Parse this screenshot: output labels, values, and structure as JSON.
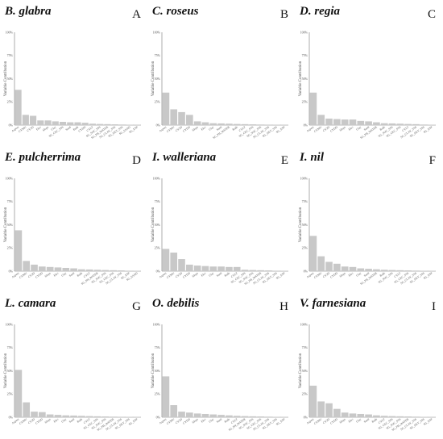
{
  "chart_data": [
    {
      "type": "bar",
      "panel": "A",
      "species": "B. glabra",
      "ylabel": "Variable Contribution",
      "yticks": [
        "100%",
        "75%",
        "50%",
        "25%",
        "0%"
      ],
      "ylim": [
        0,
        100
      ],
      "categories": [
        "Aspect",
        "CYMU",
        "CY2D",
        "Elev",
        "Slope",
        "Clay",
        "SG_CEC_SSS",
        "Sand",
        "Bulk",
        "CYDD",
        "CYLT",
        "SG_SOC_SSS",
        "SG_PH_WATER",
        "SG_CLAY_SSS",
        "SG_SILT_SSS",
        "SG_SAND",
        "SG_ESP"
      ],
      "values": [
        38,
        11,
        10,
        5,
        5,
        4,
        3.5,
        3,
        3,
        2.5,
        1.5,
        1.2,
        1,
        0.8,
        0.6,
        0.4,
        0.3
      ]
    },
    {
      "type": "bar",
      "panel": "B",
      "species": "C. roseus",
      "ylabel": "Variable Contribution",
      "yticks": [
        "100%",
        "75%",
        "50%",
        "25%",
        "0%"
      ],
      "ylim": [
        0,
        100
      ],
      "categories": [
        "Aspect",
        "CYMU",
        "CY2D",
        "CYDD",
        "Slope",
        "Elev",
        "Clay",
        "Sand",
        "SG_PH_WATER",
        "Bulk",
        "CYLT",
        "SG_CEC_SSS",
        "SG_SOC_SSS",
        "SG_CLAY_SSS",
        "SG_SILT_SSS",
        "SG_ESP"
      ],
      "values": [
        35,
        17,
        14,
        11,
        4,
        3,
        2,
        1.8,
        1.5,
        1.2,
        1,
        0.8,
        0.6,
        0.5,
        0.4,
        0.3
      ]
    },
    {
      "type": "bar",
      "panel": "C",
      "species": "D. regia",
      "ylabel": "Variable Contribution",
      "yticks": [
        "100%",
        "75%",
        "50%",
        "25%",
        "0%"
      ],
      "ylim": [
        0,
        100
      ],
      "categories": [
        "Aspect",
        "CYMU",
        "CY2D",
        "CYDD",
        "Slope",
        "Elev",
        "Clay",
        "Sand",
        "SG_PH_WATER",
        "Bulk",
        "SG_SOC_SSS",
        "SG_CEC_SSS",
        "CYLT",
        "SG_CLAY_SSS",
        "SG_SILT_SSS",
        "SG_ESP"
      ],
      "values": [
        35,
        11,
        7,
        6.5,
        6,
        6,
        4.5,
        4,
        3,
        2,
        1.8,
        1.5,
        1.2,
        1,
        0.6,
        0.4
      ]
    },
    {
      "type": "bar",
      "panel": "D",
      "species": "E. pulcherrima",
      "ylabel": "Variable Contribution",
      "yticks": [
        "100%",
        "75%",
        "50%",
        "25%",
        "0%"
      ],
      "ylim": [
        0,
        100
      ],
      "categories": [
        "Aspect",
        "CYMU",
        "CY2D",
        "CYDD",
        "Slope",
        "Elev",
        "Clay",
        "Sand",
        "Bulk",
        "CYLT",
        "SG_PH_WATER",
        "SG_SOC_SSS",
        "SG_CEC_SSS",
        "SG_CLAY_SSS",
        "SG_ESP",
        "SG_SAND"
      ],
      "values": [
        44,
        11,
        7,
        5,
        4.5,
        4,
        3.5,
        3,
        2,
        1.8,
        1.5,
        1.2,
        1,
        0.8,
        0.5,
        0.3
      ]
    },
    {
      "type": "bar",
      "panel": "E",
      "species": "I. walleriana",
      "ylabel": "Variable Contribution",
      "yticks": [
        "100%",
        "75%",
        "50%",
        "25%",
        "0%"
      ],
      "ylim": [
        0,
        100
      ],
      "categories": [
        "Aspect",
        "CYMU",
        "CY2D",
        "CYDD",
        "Slope",
        "Elev",
        "Clay",
        "Sand",
        "Bulk",
        "CYLT",
        "SG_CEC_SSS",
        "SG_SOC_SSS",
        "SG_PH_WATER",
        "SG_CLAY_SSS",
        "SG_SILT_SSS",
        "SG_ESP"
      ],
      "values": [
        24,
        20,
        13,
        7,
        6,
        5.5,
        5,
        5,
        4.5,
        4.5,
        1.5,
        1.2,
        1,
        0.8,
        0.5,
        0.3
      ]
    },
    {
      "type": "bar",
      "panel": "F",
      "species": "I. nil",
      "ylabel": "Variable Contribution",
      "yticks": [
        "100%",
        "75%",
        "50%",
        "25%",
        "0%"
      ],
      "ylim": [
        0,
        100
      ],
      "categories": [
        "Aspect",
        "CYMU",
        "CY2D",
        "CYDD",
        "Slope",
        "Elev",
        "Clay",
        "Sand",
        "SG_PH_WATER",
        "Bulk",
        "SG_SOC_SSS",
        "CYLT",
        "SG_CEC_SSS",
        "SG_CLAY_SSS",
        "SG_SILT_SSS",
        "SG_ESP"
      ],
      "values": [
        38,
        16,
        10,
        8,
        5,
        4.5,
        3,
        2.5,
        2,
        1.5,
        1.2,
        1,
        0.8,
        0.6,
        0.4,
        0.3
      ]
    },
    {
      "type": "bar",
      "panel": "G",
      "species": "L. camara",
      "ylabel": "Variable Contribution",
      "yticks": [
        "100%",
        "75%",
        "50%",
        "25%",
        "0%"
      ],
      "ylim": [
        0,
        100
      ],
      "categories": [
        "Aspect",
        "CYMU",
        "CY2D",
        "CYDD",
        "Slope",
        "Elev",
        "Clay",
        "Sand",
        "Bulk",
        "CYLT",
        "SG_CEC_SSS",
        "SG_SOC_SSS",
        "SG_PH_WATER",
        "SG_CLAY_SSS",
        "SG_SILT_SSS",
        "SG_ESP"
      ],
      "values": [
        51,
        16,
        6,
        5.5,
        3,
        2.5,
        2,
        1.8,
        1.5,
        1.2,
        1,
        0.8,
        0.6,
        0.5,
        0.4,
        0.3
      ]
    },
    {
      "type": "bar",
      "panel": "H",
      "species": "O. debilis",
      "ylabel": "Variable Contribution",
      "yticks": [
        "100%",
        "75%",
        "50%",
        "25%",
        "0%"
      ],
      "ylim": [
        0,
        100
      ],
      "categories": [
        "Aspect",
        "CYMU",
        "CY2D",
        "CYDD",
        "Slope",
        "Elev",
        "Clay",
        "Sand",
        "Bulk",
        "CYLT",
        "SG_PH_WATER",
        "SG_SOC_SSS",
        "SG_CEC_SSS",
        "SG_CLAY_SSS",
        "SG_SILT_SSS",
        "SG_ESP"
      ],
      "values": [
        44,
        13,
        6,
        5,
        4,
        3.5,
        3,
        2.5,
        2,
        1.5,
        1.2,
        1,
        0.8,
        0.6,
        0.4,
        0.3
      ]
    },
    {
      "type": "bar",
      "panel": "I",
      "species": "V. farnesiana",
      "ylabel": "Variable Contribution",
      "yticks": [
        "100%",
        "75%",
        "50%",
        "25%",
        "0%"
      ],
      "ylim": [
        0,
        100
      ],
      "categories": [
        "Aspect",
        "CYMU",
        "CY2D",
        "CYDD",
        "Slope",
        "Elev",
        "Clay",
        "Sand",
        "Bulk",
        "CYLT",
        "SG_CEC_SSS",
        "SG_SOC_SSS",
        "SG_PH_WATER",
        "SG_CLAY_SSS",
        "SG_SILT_SSS",
        "SG_ESP"
      ],
      "values": [
        34,
        17,
        15,
        9,
        5,
        4,
        3.5,
        3,
        2,
        1.5,
        1.2,
        1,
        0.8,
        0.6,
        0.4,
        0.3
      ]
    }
  ]
}
